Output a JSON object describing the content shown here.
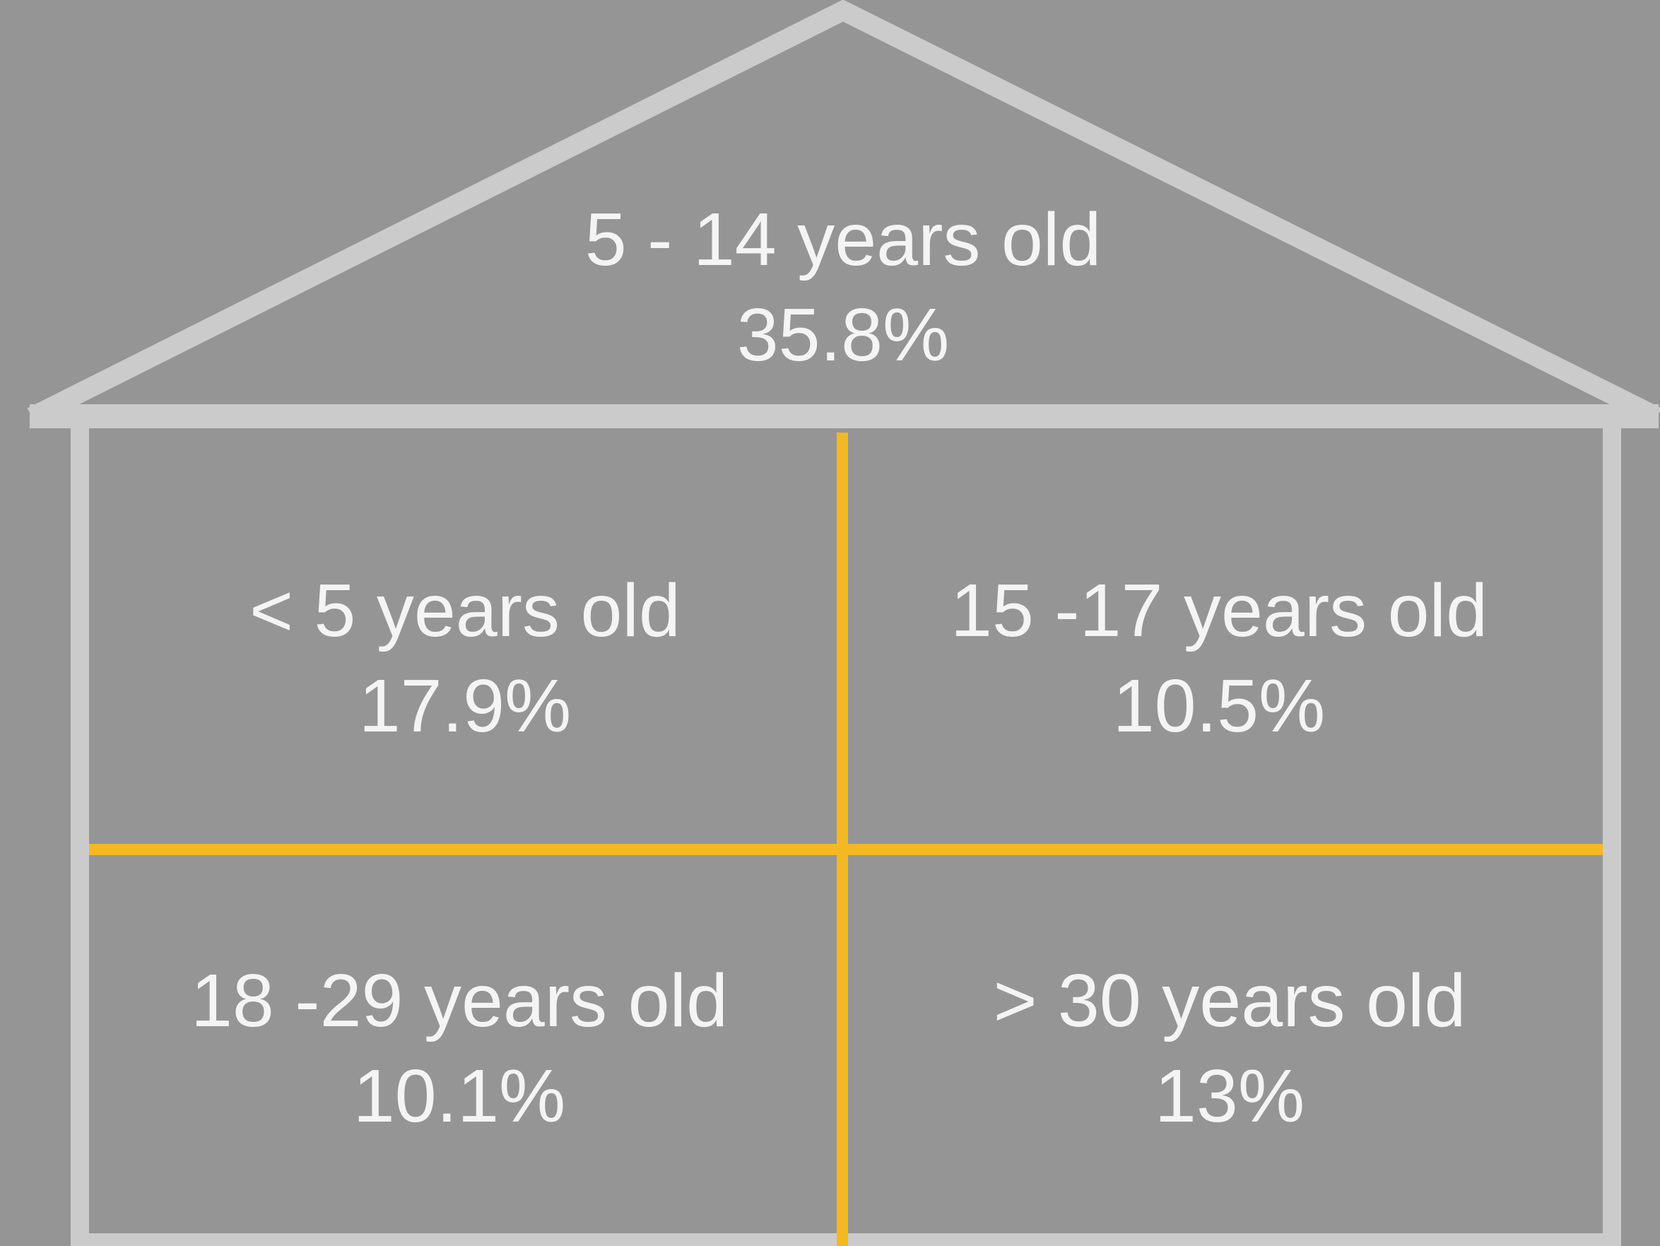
{
  "colors": {
    "background": "#959595",
    "outline": "#cbcbcb",
    "divider": "#f3b822",
    "text": "#f4f4f4"
  },
  "sections": {
    "roof": {
      "label": "5 - 14 years old",
      "value": "35.8%"
    },
    "top_left": {
      "label": "< 5 years old",
      "value": "17.9%"
    },
    "top_right": {
      "label": "15 -17 years old",
      "value": "10.5%"
    },
    "bottom_left": {
      "label": "18 -29 years old",
      "value": "10.1%"
    },
    "bottom_right": {
      "label": "> 30 years old",
      "value": "13%"
    }
  }
}
